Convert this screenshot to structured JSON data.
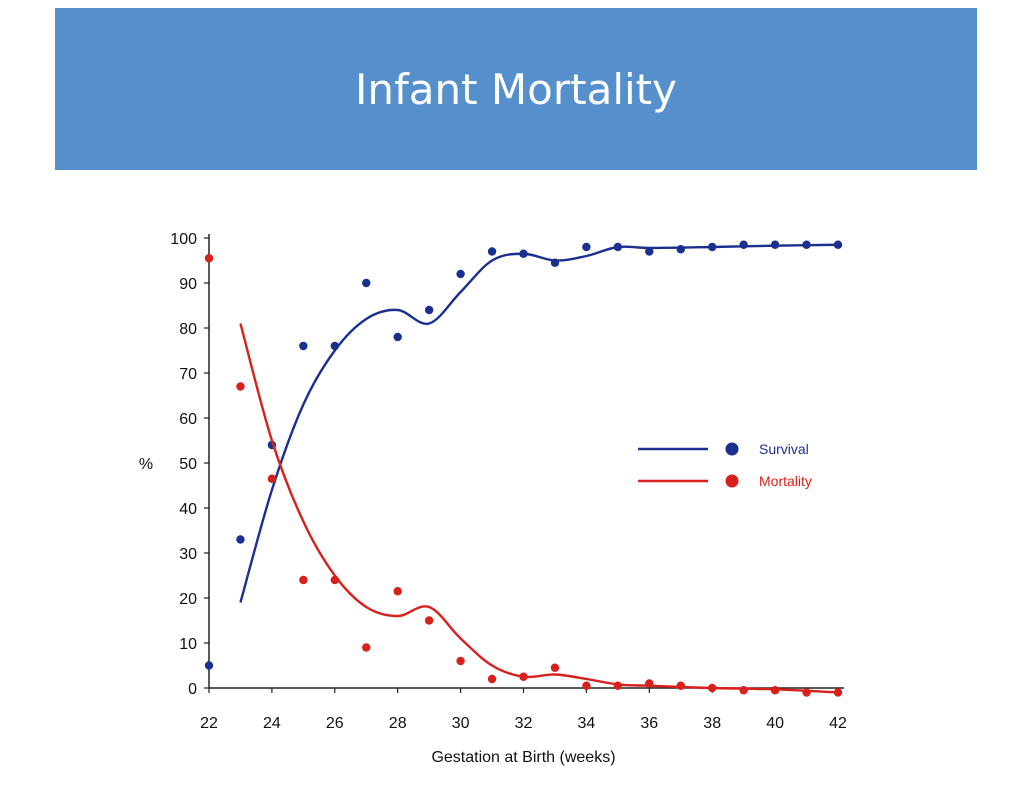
{
  "title": "Infant Mortality",
  "chart_data": {
    "type": "scatter",
    "title": "Infant Mortality",
    "xlabel": "Gestation at Birth (weeks)",
    "ylabel": "%",
    "xlim": [
      22,
      42
    ],
    "ylim": [
      0,
      100
    ],
    "x_ticks": [
      22,
      24,
      26,
      28,
      30,
      32,
      34,
      36,
      38,
      40,
      42
    ],
    "y_ticks": [
      0,
      10,
      20,
      30,
      40,
      50,
      60,
      70,
      80,
      90,
      100
    ],
    "grid": false,
    "legend_position": "right",
    "series": [
      {
        "name": "Survival",
        "color": "#1a2f8f",
        "points": [
          {
            "x": 22,
            "y": 5
          },
          {
            "x": 23,
            "y": 33
          },
          {
            "x": 24,
            "y": 54
          },
          {
            "x": 25,
            "y": 76
          },
          {
            "x": 26,
            "y": 76
          },
          {
            "x": 27,
            "y": 90
          },
          {
            "x": 28,
            "y": 78
          },
          {
            "x": 29,
            "y": 84
          },
          {
            "x": 30,
            "y": 92
          },
          {
            "x": 31,
            "y": 97
          },
          {
            "x": 32,
            "y": 96.5
          },
          {
            "x": 33,
            "y": 94.5
          },
          {
            "x": 34,
            "y": 98
          },
          {
            "x": 35,
            "y": 98
          },
          {
            "x": 36,
            "y": 97
          },
          {
            "x": 37,
            "y": 97.5
          },
          {
            "x": 38,
            "y": 98
          },
          {
            "x": 39,
            "y": 98.5
          },
          {
            "x": 40,
            "y": 98.5
          },
          {
            "x": 41,
            "y": 98.5
          },
          {
            "x": 42,
            "y": 98.5
          }
        ],
        "trend": [
          {
            "x": 23,
            "y": 19
          },
          {
            "x": 24,
            "y": 44
          },
          {
            "x": 25,
            "y": 63
          },
          {
            "x": 26,
            "y": 75
          },
          {
            "x": 27,
            "y": 82
          },
          {
            "x": 28,
            "y": 84
          },
          {
            "x": 29,
            "y": 81
          },
          {
            "x": 30,
            "y": 88
          },
          {
            "x": 31,
            "y": 95
          },
          {
            "x": 32,
            "y": 96.5
          },
          {
            "x": 33,
            "y": 95
          },
          {
            "x": 34,
            "y": 96
          },
          {
            "x": 35,
            "y": 98
          },
          {
            "x": 36,
            "y": 97.8
          },
          {
            "x": 38,
            "y": 98
          },
          {
            "x": 40,
            "y": 98.3
          },
          {
            "x": 42,
            "y": 98.5
          }
        ]
      },
      {
        "name": "Mortality",
        "color": "#d8201c",
        "points": [
          {
            "x": 22,
            "y": 95.5
          },
          {
            "x": 23,
            "y": 67
          },
          {
            "x": 24,
            "y": 46.5
          },
          {
            "x": 25,
            "y": 24
          },
          {
            "x": 26,
            "y": 24
          },
          {
            "x": 27,
            "y": 9
          },
          {
            "x": 28,
            "y": 21.5
          },
          {
            "x": 29,
            "y": 15
          },
          {
            "x": 30,
            "y": 6
          },
          {
            "x": 31,
            "y": 2
          },
          {
            "x": 32,
            "y": 2.5
          },
          {
            "x": 33,
            "y": 4.5
          },
          {
            "x": 34,
            "y": 0.5
          },
          {
            "x": 35,
            "y": 0.5
          },
          {
            "x": 36,
            "y": 1
          },
          {
            "x": 37,
            "y": 0.5
          },
          {
            "x": 38,
            "y": 0
          },
          {
            "x": 39,
            "y": -0.5
          },
          {
            "x": 40,
            "y": -0.5
          },
          {
            "x": 41,
            "y": -1
          },
          {
            "x": 42,
            "y": -1
          }
        ],
        "trend": [
          {
            "x": 23,
            "y": 81
          },
          {
            "x": 24,
            "y": 55
          },
          {
            "x": 25,
            "y": 37
          },
          {
            "x": 26,
            "y": 25
          },
          {
            "x": 27,
            "y": 18
          },
          {
            "x": 28,
            "y": 16
          },
          {
            "x": 29,
            "y": 18
          },
          {
            "x": 30,
            "y": 11
          },
          {
            "x": 31,
            "y": 5
          },
          {
            "x": 32,
            "y": 2.5
          },
          {
            "x": 33,
            "y": 3
          },
          {
            "x": 34,
            "y": 2
          },
          {
            "x": 35,
            "y": 0.8
          },
          {
            "x": 36,
            "y": 0.5
          },
          {
            "x": 38,
            "y": 0
          },
          {
            "x": 40,
            "y": -0.3
          },
          {
            "x": 42,
            "y": -1
          }
        ]
      }
    ]
  }
}
